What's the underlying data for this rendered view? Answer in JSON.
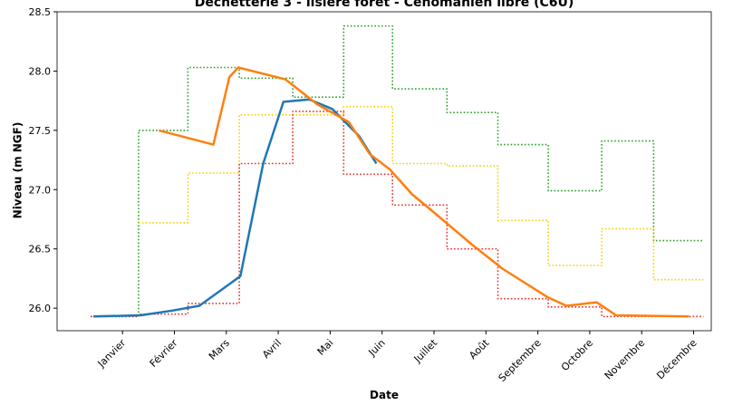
{
  "chart_data": {
    "type": "line",
    "title": "Déchetterie 3 - lisière forêt - Cénomanien libre (C6U)",
    "x_label": "Date",
    "y_label": "Niveau (m NGF)",
    "xlim": [
      -0.26,
      12.34
    ],
    "xticks": [
      {
        "value": 1,
        "label": "Janvier"
      },
      {
        "value": 2,
        "label": "Février"
      },
      {
        "value": 3,
        "label": "Mars"
      },
      {
        "value": 4,
        "label": "Avril"
      },
      {
        "value": 5,
        "label": "Mai"
      },
      {
        "value": 6,
        "label": "Juin"
      },
      {
        "value": 7,
        "label": "Juillet"
      },
      {
        "value": 8,
        "label": "Août"
      },
      {
        "value": 9,
        "label": "Septembre"
      },
      {
        "value": 10,
        "label": "Octobre"
      },
      {
        "value": 11,
        "label": "Novembre"
      },
      {
        "value": 12,
        "label": "Décembre"
      }
    ],
    "ylim": [
      25.81,
      28.5
    ],
    "yticks": [
      {
        "value": 26,
        "label": "26.0"
      },
      26.5,
      {
        "value": 27,
        "label": "27.0"
      },
      27.5,
      {
        "value": 28,
        "label": "28.0"
      },
      28.5
    ],
    "grid": false,
    "series": [
      {
        "color": "#2ca02c",
        "linestyle": "dotted",
        "x": [
          0.39,
          1.31,
          1.31,
          2.26,
          2.26,
          3.25,
          3.25,
          4.28,
          4.28,
          5.26,
          5.26,
          6.2,
          6.2,
          7.25,
          7.25,
          8.23,
          8.23,
          9.2,
          9.2,
          10.23,
          10.23,
          11.23,
          11.23,
          12.19
        ],
        "values": [
          25.93,
          25.93,
          27.5,
          27.5,
          28.03,
          28.03,
          27.94,
          27.94,
          27.78,
          27.78,
          28.38,
          28.38,
          27.85,
          27.85,
          27.65,
          27.65,
          27.38,
          27.38,
          26.99,
          26.99,
          27.41,
          27.41,
          26.57,
          26.57
        ]
      },
      {
        "color": "#f5d000",
        "linestyle": "dotted",
        "x": [
          1.31,
          2.26,
          2.26,
          3.25,
          3.25,
          5.26,
          5.26,
          6.2,
          6.2,
          7.25,
          7.25,
          8.23,
          8.23,
          9.2,
          9.2,
          10.23,
          10.23,
          11.23,
          11.23,
          12.19
        ],
        "values": [
          26.72,
          26.72,
          27.14,
          27.14,
          27.63,
          27.63,
          27.7,
          27.7,
          27.22,
          27.22,
          27.2,
          27.2,
          26.74,
          26.74,
          26.36,
          26.36,
          26.67,
          26.67,
          26.24,
          26.24
        ]
      },
      {
        "color": "#e8302a",
        "linestyle": "dotted",
        "x": [
          0.39,
          1.31,
          1.31,
          2.26,
          2.26,
          3.25,
          3.25,
          4.28,
          4.28,
          5.26,
          5.26,
          6.2,
          6.2,
          7.25,
          7.25,
          8.23,
          8.23,
          9.2,
          9.2,
          10.23,
          10.23,
          12.19
        ],
        "values": [
          25.93,
          25.93,
          25.95,
          25.95,
          26.04,
          26.04,
          27.22,
          27.22,
          27.66,
          27.66,
          27.13,
          27.13,
          26.87,
          26.87,
          26.5,
          26.5,
          26.08,
          26.08,
          26.01,
          26.01,
          25.93,
          25.93
        ]
      },
      {
        "color": "#1f77b4",
        "linestyle": "solid",
        "x": [
          0.44,
          1.35,
          1.96,
          2.48,
          3.27,
          3.71,
          4.1,
          4.6,
          5.04,
          5.56,
          5.89
        ],
        "values": [
          25.93,
          25.94,
          25.98,
          26.02,
          26.27,
          27.22,
          27.74,
          27.76,
          27.68,
          27.45,
          27.22
        ]
      },
      {
        "color": "#ff7f0e",
        "linestyle": "solid",
        "x": [
          1.7,
          2.75,
          3.06,
          3.23,
          4.14,
          4.75,
          5.36,
          5.76,
          6.15,
          6.58,
          7.02,
          7.72,
          8.33,
          9.2,
          9.55,
          10.13,
          10.51,
          11.91
        ],
        "values": [
          27.5,
          27.38,
          27.95,
          28.03,
          27.93,
          27.72,
          27.57,
          27.3,
          27.17,
          26.96,
          26.8,
          26.54,
          26.33,
          26.09,
          26.02,
          26.05,
          25.94,
          25.93
        ]
      }
    ]
  }
}
